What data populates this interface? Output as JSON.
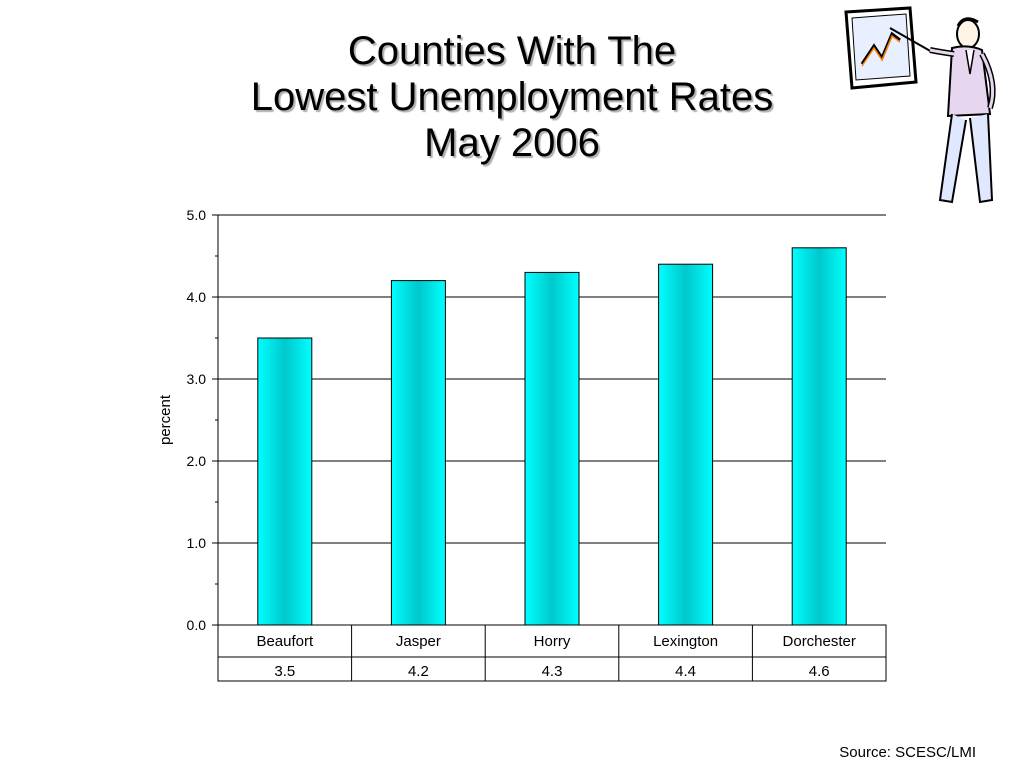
{
  "slide": {
    "title_lines": [
      "Counties With The",
      "Lowest Unemployment Rates",
      "May 2006"
    ],
    "source": "Source: SCESC/LMI",
    "clipart_icon": "presenter-with-chart-icon"
  },
  "chart_data": {
    "type": "bar",
    "title": "",
    "categories": [
      "Beaufort",
      "Jasper",
      "Horry",
      "Lexington",
      "Dorchester"
    ],
    "values": [
      3.5,
      4.2,
      4.3,
      4.4,
      4.6
    ],
    "value_labels": [
      "3.5",
      "4.2",
      "4.3",
      "4.4",
      "4.6"
    ],
    "xlabel": "",
    "ylabel": "percent",
    "ylim": [
      0,
      5
    ],
    "yticks": [
      "0.0",
      "1.0",
      "2.0",
      "3.0",
      "4.0",
      "5.0"
    ],
    "grid": true,
    "data_table": true,
    "colors": {
      "bar_edge": "#00e5ee",
      "bar_center": "#00c0c8",
      "grid": "#000000"
    }
  }
}
